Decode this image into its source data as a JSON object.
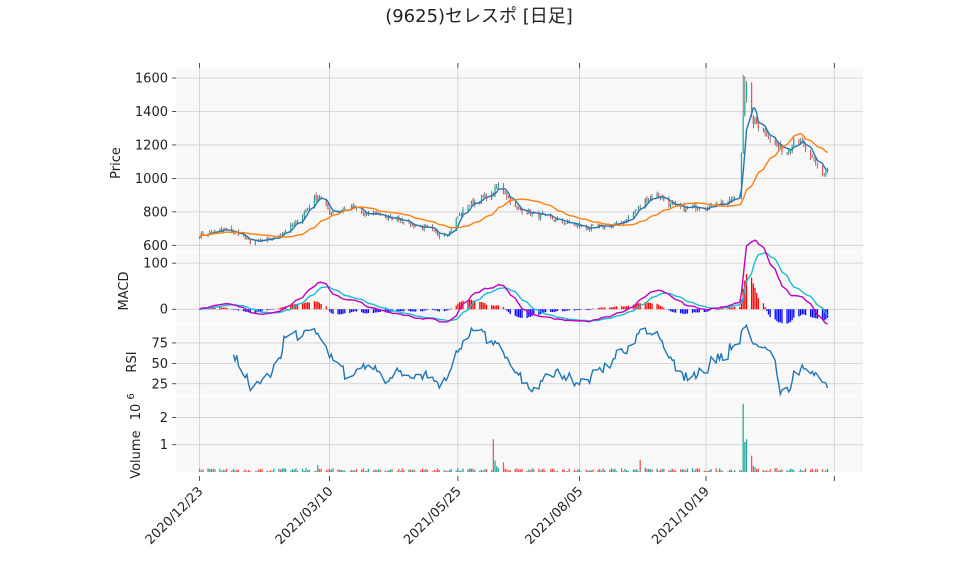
{
  "title": "(9625)セレスポ [日足]",
  "chart_data": [
    {
      "type": "candlestick",
      "panel": "price",
      "ylabel": "Price",
      "ylim": [
        560,
        1660
      ],
      "yticks": [
        600,
        800,
        1000,
        1200,
        1400,
        1600
      ],
      "xlim": [
        "2020-12-09",
        "2022-01-20"
      ],
      "xticks": [
        "2020/12/23",
        "2021/03/10",
        "2021/05/25",
        "2021/08/05",
        "2021/10/19"
      ],
      "grid": true,
      "close_anchors": [
        [
          "2020-12-23",
          660
        ],
        [
          "2020-12-29",
          675
        ],
        [
          "2021-01-07",
          690
        ],
        [
          "2021-01-15",
          670
        ],
        [
          "2021-01-22",
          620
        ],
        [
          "2021-01-29",
          625
        ],
        [
          "2021-02-05",
          640
        ],
        [
          "2021-02-12",
          690
        ],
        [
          "2021-02-19",
          740
        ],
        [
          "2021-02-26",
          840
        ],
        [
          "2021-03-03",
          900
        ],
        [
          "2021-03-10",
          800
        ],
        [
          "2021-03-17",
          810
        ],
        [
          "2021-03-24",
          830
        ],
        [
          "2021-03-31",
          780
        ],
        [
          "2021-04-07",
          790
        ],
        [
          "2021-04-14",
          760
        ],
        [
          "2021-04-21",
          760
        ],
        [
          "2021-04-28",
          720
        ],
        [
          "2021-05-07",
          700
        ],
        [
          "2021-05-14",
          660
        ],
        [
          "2021-05-20",
          680
        ],
        [
          "2021-05-25",
          770
        ],
        [
          "2021-05-31",
          840
        ],
        [
          "2021-06-07",
          880
        ],
        [
          "2021-06-14",
          900
        ],
        [
          "2021-06-18",
          960
        ],
        [
          "2021-06-21",
          930
        ],
        [
          "2021-06-28",
          820
        ],
        [
          "2021-07-05",
          800
        ],
        [
          "2021-07-12",
          780
        ],
        [
          "2021-07-19",
          760
        ],
        [
          "2021-07-27",
          740
        ],
        [
          "2021-08-03",
          720
        ],
        [
          "2021-08-10",
          700
        ],
        [
          "2021-08-17",
          710
        ],
        [
          "2021-08-24",
          720
        ],
        [
          "2021-08-31",
          740
        ],
        [
          "2021-09-07",
          800
        ],
        [
          "2021-09-14",
          880
        ],
        [
          "2021-09-21",
          900
        ],
        [
          "2021-09-28",
          840
        ],
        [
          "2021-10-05",
          820
        ],
        [
          "2021-10-12",
          830
        ],
        [
          "2021-10-19",
          830
        ],
        [
          "2021-10-26",
          850
        ],
        [
          "2021-11-02",
          860
        ],
        [
          "2021-11-08",
          900
        ],
        [
          "2021-11-10",
          1400
        ],
        [
          "2021-11-12",
          1550
        ],
        [
          "2021-11-15",
          1350
        ],
        [
          "2021-11-22",
          1300
        ],
        [
          "2021-11-29",
          1200
        ],
        [
          "2021-12-06",
          1160
        ],
        [
          "2021-12-10",
          1240
        ],
        [
          "2021-12-14",
          1230
        ],
        [
          "2021-12-17",
          1160
        ],
        [
          "2021-12-22",
          1100
        ],
        [
          "2021-12-27",
          1020
        ],
        [
          "2021-12-30",
          1060
        ]
      ],
      "volume_spikes": [
        [
          "2021-03-03",
          0.25
        ],
        [
          "2021-06-15",
          1.2
        ],
        [
          "2021-06-21",
          0.35
        ],
        [
          "2021-09-10",
          0.45
        ],
        [
          "2021-11-10",
          2.5
        ],
        [
          "2021-11-11",
          1.1
        ],
        [
          "2021-11-12",
          1.2
        ],
        [
          "2021-11-15",
          0.6
        ]
      ],
      "series": [
        {
          "kind": "ma_short",
          "color": "#1f77b4"
        },
        {
          "kind": "ma_long",
          "color": "#ff7f0e"
        }
      ],
      "colors": {
        "up": "#26a69a",
        "down": "#ef5350",
        "wick": "#333333"
      }
    },
    {
      "type": "line_bar",
      "panel": "macd",
      "ylabel": "MACD",
      "ylim": [
        -32,
        122
      ],
      "yticks": [
        0,
        100
      ],
      "series": [
        {
          "kind": "macd",
          "color": "#c000c0"
        },
        {
          "kind": "signal",
          "color": "#17becf"
        },
        {
          "kind": "histogram_pos",
          "color": "#ff0000"
        },
        {
          "kind": "histogram_neg",
          "color": "#0000ff"
        }
      ]
    },
    {
      "type": "line",
      "panel": "rsi",
      "ylabel": "RSI",
      "ylim": [
        10,
        97
      ],
      "yticks": [
        25,
        50,
        75
      ],
      "series": [
        {
          "kind": "rsi",
          "color": "#1f77b4"
        }
      ]
    },
    {
      "type": "bar",
      "panel": "volume",
      "ylabel": "Volume",
      "yscale_label": "10^6",
      "ylim": [
        0,
        2.75
      ],
      "yticks": [
        1,
        2
      ],
      "colors": {
        "up": "#26a69a",
        "down": "#ef5350"
      }
    }
  ],
  "ylabels": {
    "price": "Price",
    "macd": "MACD",
    "rsi": "RSI",
    "volume": "Volume",
    "volume_exp_base": "10",
    "volume_exp": "6"
  },
  "colors": {
    "panel_bg": "#f8f8f8",
    "grid": "#cccccc",
    "axis": "#222222"
  }
}
